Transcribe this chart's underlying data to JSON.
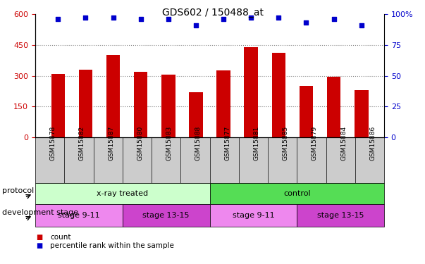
{
  "title": "GDS602 / 150488_at",
  "samples": [
    "GSM15878",
    "GSM15882",
    "GSM15887",
    "GSM15880",
    "GSM15883",
    "GSM15888",
    "GSM15877",
    "GSM15881",
    "GSM15885",
    "GSM15879",
    "GSM15884",
    "GSM15886"
  ],
  "counts": [
    310,
    330,
    400,
    320,
    305,
    220,
    325,
    440,
    410,
    250,
    295,
    230
  ],
  "percentile_ranks": [
    96,
    97,
    97,
    96,
    96,
    91,
    96,
    97,
    97,
    93,
    96,
    91
  ],
  "left_ylim": [
    0,
    600
  ],
  "left_yticks": [
    0,
    150,
    300,
    450,
    600
  ],
  "right_ylim": [
    0,
    100
  ],
  "right_yticks": [
    0,
    25,
    50,
    75,
    100
  ],
  "bar_color": "#cc0000",
  "dot_color": "#0000cc",
  "protocol_groups": [
    {
      "label": "x-ray treated",
      "start": 0,
      "end": 6,
      "color": "#ccffcc"
    },
    {
      "label": "control",
      "start": 6,
      "end": 12,
      "color": "#55dd55"
    }
  ],
  "stage_groups": [
    {
      "label": "stage 9-11",
      "start": 0,
      "end": 3,
      "color": "#ee88ee"
    },
    {
      "label": "stage 13-15",
      "start": 3,
      "end": 6,
      "color": "#cc44cc"
    },
    {
      "label": "stage 9-11",
      "start": 6,
      "end": 9,
      "color": "#ee88ee"
    },
    {
      "label": "stage 13-15",
      "start": 9,
      "end": 12,
      "color": "#cc44cc"
    }
  ],
  "legend_items": [
    {
      "label": "count",
      "color": "#cc0000",
      "marker": "s"
    },
    {
      "label": "percentile rank within the sample",
      "color": "#0000cc",
      "marker": "s"
    }
  ],
  "grid_yticks": [
    150,
    300,
    450
  ],
  "protocol_label": "protocol",
  "stage_label": "development stage",
  "tick_label_color_left": "#cc0000",
  "tick_label_color_right": "#0000cc",
  "xtick_bg_color": "#cccccc",
  "right_axis_label": "100%"
}
